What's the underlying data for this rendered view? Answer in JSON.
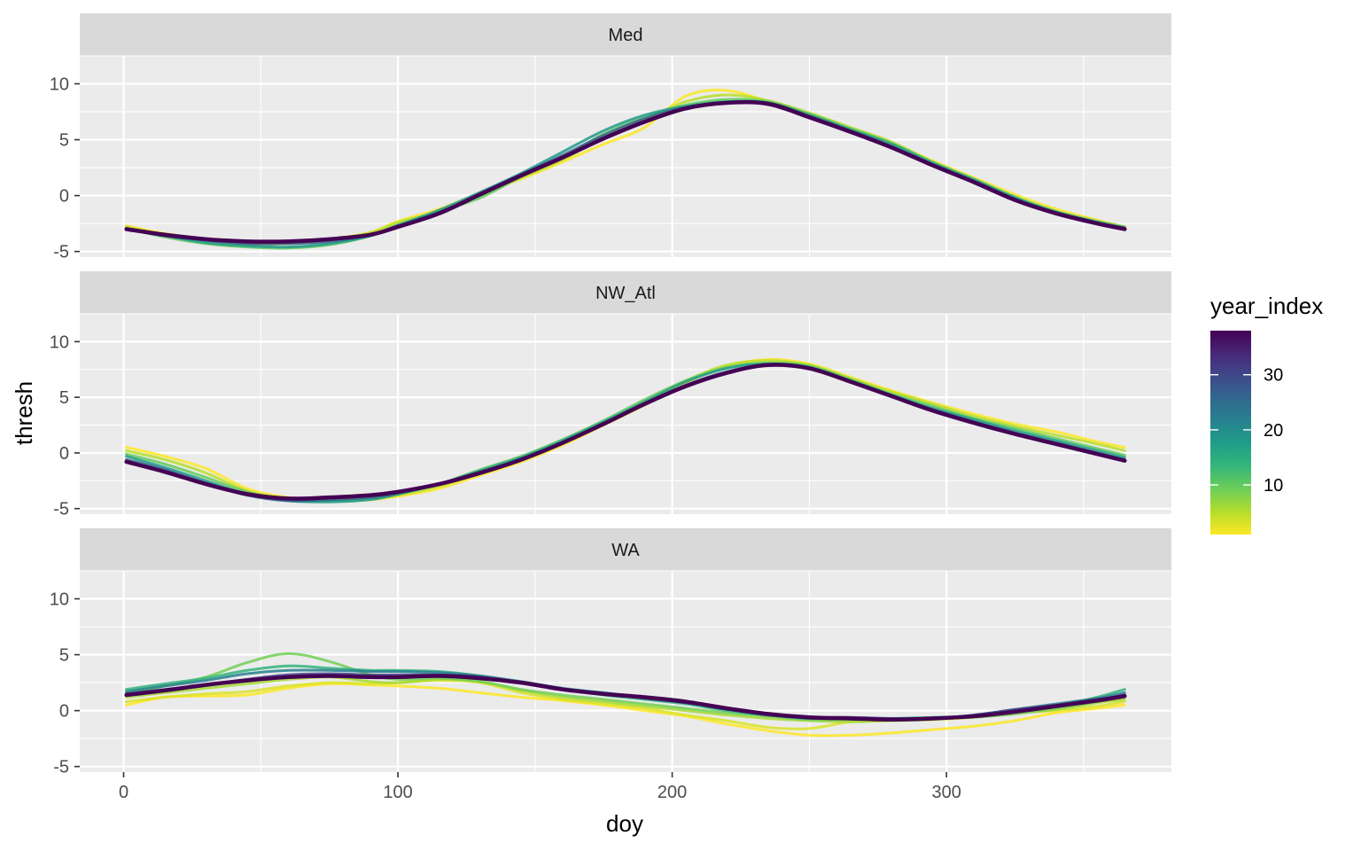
{
  "chart_data": {
    "type": "line",
    "xlabel": "doy",
    "ylabel": "thresh",
    "xlim": [
      -16,
      382
    ],
    "ylim": [
      -5.5,
      12.5
    ],
    "x_ticks": [
      0,
      100,
      200,
      300
    ],
    "x_minor_ticks": [
      50,
      150,
      250,
      350
    ],
    "y_ticks": [
      -5,
      0,
      5,
      10
    ],
    "y_minor_ticks": [
      -2.5,
      2.5,
      7.5,
      12.5
    ],
    "grid": true,
    "legend": {
      "title": "year_index",
      "position": "right",
      "range": [
        1,
        38
      ],
      "ticks": [
        10,
        20,
        30
      ],
      "palette": [
        "#FDE725",
        "#B5DE2B",
        "#6ECE58",
        "#35B779",
        "#1F9E89",
        "#26828E",
        "#31688E",
        "#3E4989",
        "#482878",
        "#440154"
      ]
    },
    "panels": [
      {
        "label": "Med",
        "x": [
          1,
          15,
          30,
          45,
          60,
          75,
          90,
          100,
          115,
          130,
          145,
          160,
          175,
          190,
          205,
          220,
          235,
          250,
          265,
          280,
          295,
          310,
          325,
          340,
          355,
          365
        ],
        "series": [
          {
            "year_index": 1,
            "values": [
              -2.7,
              -3.4,
              -3.9,
              -4.2,
              -4.2,
              -3.9,
              -3.3,
              -2.3,
              -1.2,
              0.2,
              1.5,
              3.0,
              4.6,
              6.1,
              8.9,
              9.4,
              8.4,
              7.3,
              6.0,
              4.7,
              3.1,
              1.6,
              0.1,
              -1.2,
              -2.2,
              -2.8
            ]
          },
          {
            "year_index": 5,
            "values": [
              -2.8,
              -3.5,
              -4.0,
              -4.3,
              -4.3,
              -4.0,
              -3.3,
              -2.4,
              -1.4,
              0.0,
              1.6,
              3.2,
              5.2,
              6.8,
              8.4,
              9.0,
              8.5,
              7.4,
              6.1,
              4.8,
              3.0,
              1.4,
              -0.2,
              -1.4,
              -2.3,
              -2.8
            ]
          },
          {
            "year_index": 10,
            "values": [
              -2.9,
              -3.7,
              -4.3,
              -4.6,
              -4.7,
              -4.4,
              -3.6,
              -2.6,
              -1.4,
              -0.2,
              1.7,
              3.4,
              5.5,
              7.0,
              8.1,
              8.6,
              8.4,
              7.3,
              6.0,
              4.7,
              3.0,
              1.5,
              -0.1,
              -1.4,
              -2.3,
              -2.8
            ]
          },
          {
            "year_index": 18,
            "values": [
              -3.0,
              -3.6,
              -4.2,
              -4.5,
              -4.6,
              -4.3,
              -3.6,
              -2.7,
              -1.3,
              0.3,
              2.0,
              3.9,
              5.8,
              7.2,
              8.0,
              8.4,
              8.3,
              7.2,
              5.9,
              4.6,
              2.9,
              1.4,
              -0.2,
              -1.5,
              -2.4,
              -2.9
            ]
          },
          {
            "year_index": 27,
            "values": [
              -3.0,
              -3.6,
              -4.0,
              -4.3,
              -4.3,
              -4.1,
              -3.5,
              -2.7,
              -1.5,
              0.2,
              1.9,
              3.6,
              5.4,
              6.9,
              7.9,
              8.3,
              8.3,
              7.1,
              5.8,
              4.4,
              2.8,
              1.3,
              -0.3,
              -1.5,
              -2.4,
              -2.9
            ]
          },
          {
            "year_index": 38,
            "values": [
              -3.0,
              -3.5,
              -3.9,
              -4.1,
              -4.1,
              -3.9,
              -3.5,
              -2.8,
              -1.6,
              0.1,
              1.8,
              3.4,
              5.1,
              6.6,
              7.8,
              8.3,
              8.2,
              7.0,
              5.7,
              4.3,
              2.7,
              1.2,
              -0.4,
              -1.6,
              -2.5,
              -3.0
            ]
          }
        ]
      },
      {
        "label": "NW_Atl",
        "x": [
          1,
          15,
          30,
          45,
          60,
          75,
          90,
          100,
          115,
          130,
          145,
          160,
          175,
          190,
          205,
          220,
          235,
          250,
          265,
          280,
          295,
          310,
          325,
          340,
          355,
          365
        ],
        "series": [
          {
            "year_index": 1,
            "values": [
              0.5,
              -0.3,
              -1.4,
              -3.2,
              -4.0,
              -4.3,
              -4.2,
              -3.9,
              -3.2,
              -2.0,
              -0.8,
              0.7,
              2.5,
              4.3,
              6.3,
              7.8,
              8.4,
              8.0,
              6.8,
              5.6,
              4.5,
              3.5,
              2.6,
              1.9,
              1.0,
              0.5
            ]
          },
          {
            "year_index": 5,
            "values": [
              0.2,
              -0.6,
              -1.8,
              -3.4,
              -4.1,
              -4.3,
              -4.1,
              -3.8,
              -3.0,
              -1.8,
              -0.5,
              1.0,
              2.8,
              4.6,
              6.5,
              7.9,
              8.3,
              7.9,
              6.7,
              5.5,
              4.4,
              3.3,
              2.4,
              1.6,
              0.8,
              0.2
            ]
          },
          {
            "year_index": 10,
            "values": [
              -0.1,
              -1.0,
              -2.2,
              -3.5,
              -4.2,
              -4.3,
              -4.1,
              -3.7,
              -2.8,
              -1.5,
              -0.3,
              1.2,
              2.9,
              4.8,
              6.5,
              7.7,
              8.1,
              7.8,
              6.6,
              5.3,
              4.2,
              3.1,
              2.2,
              1.3,
              0.4,
              -0.2
            ]
          },
          {
            "year_index": 18,
            "values": [
              -0.3,
              -1.3,
              -2.5,
              -3.7,
              -4.3,
              -4.4,
              -4.2,
              -3.7,
              -2.8,
              -1.6,
              -0.4,
              1.1,
              2.8,
              4.6,
              6.4,
              7.6,
              8.0,
              7.7,
              6.5,
              5.2,
              4.0,
              3.0,
              2.0,
              1.1,
              0.2,
              -0.4
            ]
          },
          {
            "year_index": 27,
            "values": [
              -0.6,
              -1.5,
              -2.7,
              -3.8,
              -4.3,
              -4.2,
              -4.0,
              -3.6,
              -2.8,
              -1.7,
              -0.6,
              0.9,
              2.6,
              4.4,
              6.1,
              7.3,
              7.9,
              7.6,
              6.4,
              5.1,
              3.9,
              2.8,
              1.8,
              0.9,
              0.0,
              -0.6
            ]
          },
          {
            "year_index": 38,
            "values": [
              -0.8,
              -1.7,
              -2.8,
              -3.7,
              -4.1,
              -4.0,
              -3.8,
              -3.5,
              -2.8,
              -1.8,
              -0.6,
              0.9,
              2.6,
              4.4,
              6.0,
              7.2,
              7.9,
              7.6,
              6.4,
              5.1,
              3.8,
              2.7,
              1.7,
              0.8,
              -0.1,
              -0.7
            ]
          }
        ]
      },
      {
        "label": "WA",
        "x": [
          1,
          15,
          30,
          45,
          60,
          75,
          90,
          100,
          115,
          130,
          145,
          160,
          175,
          190,
          205,
          220,
          235,
          250,
          265,
          280,
          295,
          310,
          325,
          340,
          355,
          365
        ],
        "series": [
          {
            "year_index": 1,
            "values": [
              0.5,
              1.2,
              1.3,
              1.4,
              2.0,
              2.4,
              2.3,
              2.2,
              2.0,
              1.6,
              1.2,
              0.9,
              0.5,
              0.0,
              -0.5,
              -1.2,
              -1.8,
              -2.2,
              -2.2,
              -2.0,
              -1.7,
              -1.4,
              -0.9,
              -0.2,
              0.2,
              0.5
            ]
          },
          {
            "year_index": 3,
            "values": [
              0.8,
              1.2,
              1.5,
              1.7,
              2.2,
              2.5,
              2.4,
              2.5,
              2.7,
              2.5,
              1.6,
              1.0,
              0.6,
              0.2,
              -0.4,
              -0.9,
              -1.5,
              -1.6,
              -1.0,
              -0.8,
              -0.8,
              -0.6,
              -0.2,
              0.0,
              0.4,
              0.8
            ]
          },
          {
            "year_index": 6,
            "values": [
              1.2,
              1.6,
              2.0,
              2.4,
              2.8,
              3.0,
              2.6,
              2.5,
              2.8,
              2.6,
              1.8,
              1.2,
              0.8,
              0.4,
              0.0,
              -0.4,
              -0.7,
              -0.9,
              -1.0,
              -0.9,
              -0.8,
              -0.5,
              -0.2,
              0.1,
              0.7,
              1.0
            ]
          },
          {
            "year_index": 9,
            "values": [
              1.6,
              2.2,
              3.0,
              4.3,
              5.1,
              4.4,
              3.2,
              2.8,
              2.9,
              2.6,
              1.9,
              1.4,
              1.0,
              0.6,
              0.2,
              -0.2,
              -0.5,
              -0.8,
              -0.8,
              -0.8,
              -0.7,
              -0.6,
              -0.3,
              0.2,
              0.8,
              1.3
            ]
          },
          {
            "year_index": 14,
            "values": [
              1.9,
              2.4,
              2.9,
              3.6,
              4.0,
              3.8,
              3.6,
              3.6,
              3.5,
              3.1,
              2.5,
              1.9,
              1.4,
              1.0,
              0.6,
              0.0,
              -0.4,
              -0.6,
              -0.7,
              -0.7,
              -0.6,
              -0.5,
              -0.1,
              0.4,
              1.2,
              1.9
            ]
          },
          {
            "year_index": 22,
            "values": [
              1.7,
              2.2,
              2.7,
              3.3,
              3.6,
              3.6,
              3.5,
              3.5,
              3.4,
              3.1,
              2.6,
              2.0,
              1.6,
              1.2,
              0.7,
              0.1,
              -0.4,
              -0.7,
              -0.7,
              -0.8,
              -0.7,
              -0.4,
              0.1,
              0.6,
              1.1,
              1.6
            ]
          },
          {
            "year_index": 30,
            "values": [
              1.5,
              1.9,
              2.3,
              2.8,
              3.2,
              3.3,
              3.2,
              3.2,
              3.2,
              3.0,
              2.5,
              1.9,
              1.5,
              1.1,
              0.7,
              0.2,
              -0.4,
              -0.6,
              -0.6,
              -0.7,
              -0.7,
              -0.4,
              0.1,
              0.5,
              1.0,
              1.4
            ]
          },
          {
            "year_index": 38,
            "values": [
              1.4,
              1.8,
              2.3,
              2.7,
              3.0,
              3.1,
              3.0,
              3.0,
              3.1,
              2.9,
              2.5,
              1.9,
              1.5,
              1.2,
              0.8,
              0.2,
              -0.3,
              -0.6,
              -0.7,
              -0.8,
              -0.7,
              -0.5,
              -0.1,
              0.4,
              0.9,
              1.3
            ]
          }
        ]
      }
    ]
  }
}
